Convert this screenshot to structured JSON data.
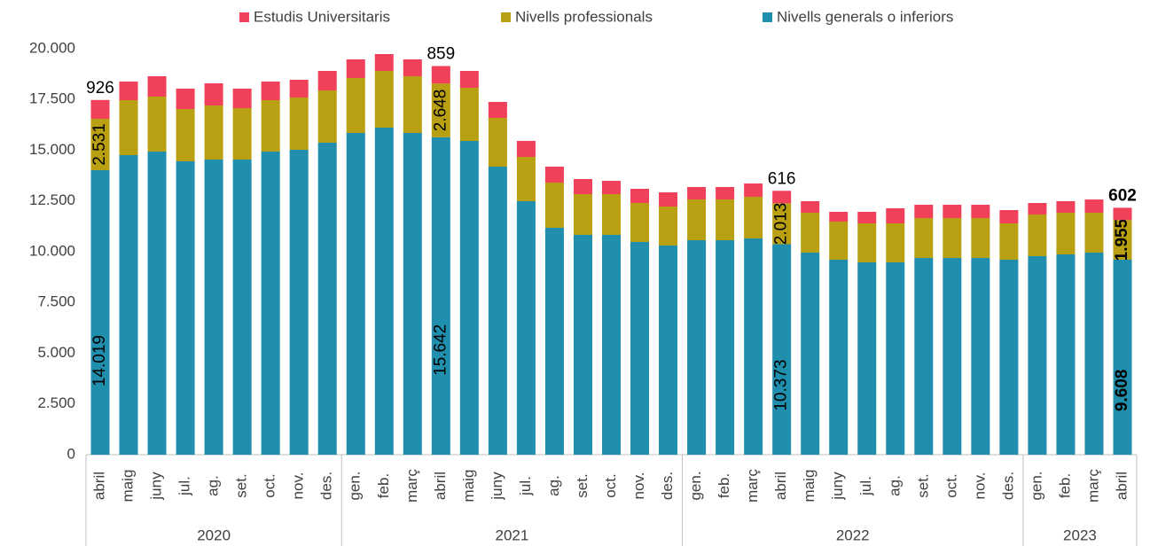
{
  "chart_data": {
    "type": "stacked_bar",
    "categories": [
      "abril",
      "maig",
      "juny",
      "jul.",
      "ag.",
      "set.",
      "oct.",
      "nov.",
      "des.",
      "gen.",
      "feb.",
      "març",
      "abril",
      "maig",
      "juny",
      "jul.",
      "ag.",
      "set.",
      "oct.",
      "nov.",
      "des.",
      "gen.",
      "feb.",
      "març",
      "abril",
      "maig",
      "juny",
      "jul.",
      "ag.",
      "set.",
      "oct.",
      "nov.",
      "des.",
      "gen.",
      "feb.",
      "març",
      "abril"
    ],
    "year_groups": [
      {
        "label": "2020",
        "span": 9
      },
      {
        "label": "2021",
        "span": 12
      },
      {
        "label": "2022",
        "span": 12
      },
      {
        "label": "2023",
        "span": 4
      }
    ],
    "series": [
      {
        "name": "Nivells generals o inferiors",
        "color": "#1f8fad",
        "values": [
          14019,
          14760,
          14934,
          14454,
          14541,
          14541,
          14934,
          15022,
          15371,
          15852,
          16114,
          15852,
          15642,
          15459,
          14192,
          12489,
          11179,
          10830,
          10830,
          10480,
          10306,
          10568,
          10568,
          10655,
          10373,
          9956,
          9607,
          9476,
          9476,
          9694,
          9694,
          9694,
          9607,
          9782,
          9869,
          9956,
          9608
        ],
        "value_labels": [
          "14.019",
          null,
          null,
          null,
          null,
          null,
          null,
          null,
          null,
          null,
          null,
          null,
          "15.642",
          null,
          null,
          null,
          null,
          null,
          null,
          null,
          null,
          null,
          null,
          null,
          "10.373",
          null,
          null,
          null,
          null,
          null,
          null,
          null,
          null,
          null,
          null,
          null,
          "9.608"
        ]
      },
      {
        "name": "Nivells professionals",
        "color": "#b8a012",
        "values": [
          2531,
          2707,
          2708,
          2577,
          2664,
          2533,
          2533,
          2576,
          2577,
          2707,
          2794,
          2794,
          2648,
          2620,
          2402,
          2183,
          2227,
          2008,
          2008,
          1922,
          1921,
          2008,
          2008,
          2052,
          2013,
          1965,
          1878,
          1921,
          1921,
          1965,
          1965,
          1965,
          1790,
          2052,
          2052,
          1965,
          1955
        ],
        "value_labels": [
          "2.531",
          null,
          null,
          null,
          null,
          null,
          null,
          null,
          null,
          null,
          null,
          null,
          "2.648",
          null,
          null,
          null,
          null,
          null,
          null,
          null,
          null,
          null,
          null,
          null,
          "2.013",
          null,
          null,
          null,
          null,
          null,
          null,
          null,
          null,
          null,
          null,
          null,
          "1.955"
        ]
      },
      {
        "name": "Estudis Universitaris",
        "color": "#f0405a",
        "values": [
          926,
          917,
          1004,
          1004,
          1092,
          961,
          917,
          874,
          960,
          917,
          830,
          830,
          859,
          829,
          786,
          787,
          786,
          743,
          655,
          698,
          699,
          612,
          612,
          655,
          616,
          568,
          480,
          568,
          743,
          655,
          655,
          655,
          655,
          568,
          568,
          655,
          602
        ]
      }
    ],
    "ylim": [
      0,
      20000
    ],
    "yticks": [
      0,
      {
        "value": 2500,
        "label": "2.500"
      },
      {
        "value": 5000,
        "label": "5.000"
      },
      {
        "value": 7500,
        "label": "7.500"
      },
      {
        "value": 10000,
        "label": "10.000"
      },
      {
        "value": 12500,
        "label": "12.500"
      },
      {
        "value": 15000,
        "label": "15.000"
      },
      {
        "value": 17500,
        "label": "17.500"
      },
      {
        "value": 20000,
        "label": "20.000"
      }
    ]
  }
}
